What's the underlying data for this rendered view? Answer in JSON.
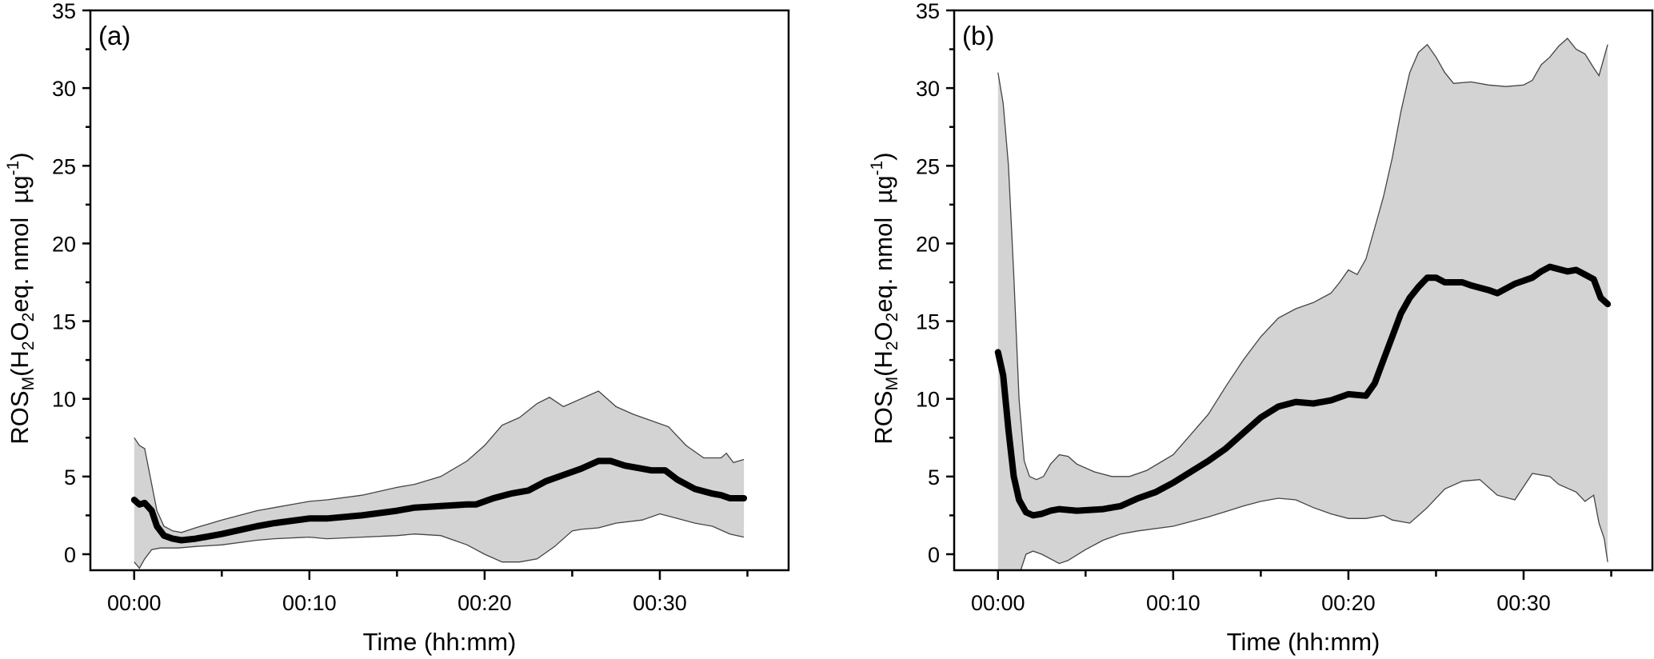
{
  "chart_data": [
    {
      "type": "line",
      "panel_label": "(a)",
      "title": "",
      "xlabel": "Time (hh:mm)",
      "ylabel": {
        "prefix": "ROS",
        "sub_m": "M",
        "open": "(H",
        "sub_2a": "2",
        "o": "O",
        "sub_2b": "2",
        "rest": "eq. nmol  µg",
        "sup": "-1",
        "close": ")"
      },
      "xlim": [
        -2.5,
        37.35
      ],
      "ylim": [
        -1.03,
        35
      ],
      "xticks": [
        0,
        10,
        20,
        30
      ],
      "xtick_labels": [
        "00:00",
        "00:10",
        "00:20",
        "00:30"
      ],
      "xminor": [
        5,
        15,
        25,
        35
      ],
      "yticks": [
        0,
        5,
        10,
        15,
        20,
        25,
        30,
        35
      ],
      "ytick_labels": [
        "0",
        "5",
        "10",
        "15",
        "20",
        "25",
        "30",
        "35"
      ],
      "yminor": [
        2.5,
        7.5,
        12.5,
        17.5,
        22.5,
        27.5,
        32.5
      ],
      "grid": false,
      "legend": "none",
      "series": [
        {
          "name": "mean",
          "x": [
            0,
            0.3,
            0.6,
            1.0,
            1.3,
            1.7,
            2.2,
            2.7,
            3.5,
            5,
            7,
            8,
            10,
            11,
            13,
            15,
            16,
            17.5,
            19,
            19.5,
            20.5,
            21.5,
            22.5,
            23.5,
            24.5,
            25.5,
            26.5,
            27.2,
            28,
            29,
            29.5,
            30.3,
            31,
            32,
            33,
            33.5,
            34,
            34.8
          ],
          "y": [
            3.5,
            3.2,
            3.3,
            2.8,
            1.8,
            1.2,
            1.0,
            0.9,
            1.0,
            1.3,
            1.8,
            2.0,
            2.3,
            2.3,
            2.5,
            2.8,
            3.0,
            3.1,
            3.2,
            3.2,
            3.6,
            3.9,
            4.1,
            4.7,
            5.1,
            5.5,
            6.0,
            6.0,
            5.7,
            5.5,
            5.4,
            5.4,
            4.8,
            4.2,
            3.9,
            3.8,
            3.6,
            3.6
          ]
        },
        {
          "name": "upper",
          "x": [
            0,
            0.3,
            0.6,
            1.0,
            1.3,
            1.7,
            2.2,
            2.7,
            3.5,
            5,
            7,
            8,
            10,
            11,
            13,
            15,
            16,
            17.5,
            19,
            20,
            21,
            22,
            23,
            23.7,
            24.5,
            25.5,
            26.5,
            27.5,
            28.5,
            29.5,
            30.5,
            31.5,
            32.5,
            33.5,
            33.8,
            34.2,
            34.8
          ],
          "y": [
            7.5,
            7.0,
            6.8,
            4.5,
            2.8,
            1.8,
            1.5,
            1.4,
            1.7,
            2.2,
            2.8,
            3.0,
            3.4,
            3.5,
            3.8,
            4.3,
            4.5,
            5.0,
            6.0,
            7.0,
            8.3,
            8.8,
            9.7,
            10.1,
            9.5,
            10.0,
            10.5,
            9.5,
            9.0,
            8.6,
            8.2,
            7.0,
            6.2,
            6.2,
            6.5,
            5.9,
            6.1
          ]
        },
        {
          "name": "lower",
          "x": [
            0,
            0.3,
            0.6,
            1.0,
            1.5,
            2.5,
            3.5,
            5,
            7,
            8,
            10,
            11,
            13,
            15,
            16,
            17.5,
            19,
            20,
            21,
            22,
            23,
            24,
            25,
            25.5,
            26.5,
            27.5,
            29,
            30,
            31,
            32,
            33,
            34,
            34.8
          ],
          "y": [
            -0.5,
            -0.9,
            -0.3,
            0.3,
            0.4,
            0.4,
            0.5,
            0.6,
            0.9,
            1.0,
            1.1,
            1.0,
            1.1,
            1.2,
            1.3,
            1.2,
            0.6,
            0.0,
            -0.5,
            -0.5,
            -0.3,
            0.5,
            1.5,
            1.6,
            1.7,
            2.0,
            2.2,
            2.6,
            2.3,
            2.0,
            1.8,
            1.3,
            1.1
          ]
        }
      ]
    },
    {
      "type": "line",
      "panel_label": "(b)",
      "title": "",
      "xlabel": "Time (hh:mm)",
      "ylabel": {
        "prefix": "ROS",
        "sub_m": "M",
        "open": "(H",
        "sub_2a": "2",
        "o": "O",
        "sub_2b": "2",
        "rest": "eq. nmol  µg",
        "sup": "-1",
        "close": ")"
      },
      "xlim": [
        -2.5,
        37.35
      ],
      "ylim": [
        -1.03,
        35
      ],
      "xticks": [
        0,
        10,
        20,
        30
      ],
      "xtick_labels": [
        "00:00",
        "00:10",
        "00:20",
        "00:30"
      ],
      "xminor": [
        5,
        15,
        25,
        35
      ],
      "yticks": [
        0,
        5,
        10,
        15,
        20,
        25,
        30,
        35
      ],
      "ytick_labels": [
        "0",
        "5",
        "10",
        "15",
        "20",
        "25",
        "30",
        "35"
      ],
      "yminor": [
        2.5,
        7.5,
        12.5,
        17.5,
        22.5,
        27.5,
        32.5
      ],
      "grid": false,
      "legend": "none",
      "series": [
        {
          "name": "mean",
          "x": [
            0,
            0.3,
            0.6,
            0.9,
            1.2,
            1.6,
            2.0,
            2.5,
            3.0,
            3.5,
            4.5,
            6,
            7,
            8,
            9,
            10,
            11,
            12,
            13,
            14,
            15,
            16,
            17,
            18,
            19,
            20,
            21,
            21.5,
            22,
            22.5,
            23,
            23.5,
            24,
            24.5,
            25,
            25.5,
            26.5,
            27,
            28,
            28.5,
            29.5,
            30.5,
            31,
            31.5,
            32.5,
            33,
            33.5,
            34,
            34.4,
            34.8
          ],
          "y": [
            13.0,
            11.5,
            8.0,
            5.0,
            3.5,
            2.7,
            2.5,
            2.6,
            2.8,
            2.9,
            2.8,
            2.9,
            3.1,
            3.6,
            4.0,
            4.6,
            5.3,
            6.0,
            6.8,
            7.8,
            8.8,
            9.5,
            9.8,
            9.7,
            9.9,
            10.3,
            10.2,
            11.0,
            12.5,
            14.0,
            15.5,
            16.5,
            17.2,
            17.8,
            17.8,
            17.5,
            17.5,
            17.3,
            17.0,
            16.8,
            17.4,
            17.8,
            18.2,
            18.5,
            18.2,
            18.3,
            18.0,
            17.7,
            16.5,
            16.1
          ]
        },
        {
          "name": "upper",
          "x": [
            0,
            0.3,
            0.6,
            0.9,
            1.2,
            1.5,
            1.8,
            2.2,
            2.6,
            3.0,
            3.5,
            4.0,
            4.5,
            5.5,
            6.5,
            7.5,
            8.5,
            10,
            11,
            12,
            13,
            14,
            15,
            16,
            17,
            18,
            19,
            19.5,
            20,
            20.5,
            21,
            21.5,
            22,
            22.5,
            23,
            23.5,
            24,
            24.5,
            25,
            25.5,
            26,
            27,
            28,
            29,
            30,
            30.5,
            31,
            31.5,
            32,
            32.5,
            33,
            33.5,
            34,
            34.3,
            34.8
          ],
          "y": [
            31.0,
            29.0,
            25.0,
            18.0,
            10.0,
            6.0,
            5.0,
            4.8,
            5.0,
            5.8,
            6.4,
            6.3,
            5.8,
            5.3,
            5.0,
            5.0,
            5.4,
            6.4,
            7.7,
            9.0,
            10.8,
            12.5,
            14.0,
            15.2,
            15.8,
            16.2,
            16.8,
            17.5,
            18.3,
            18.0,
            19.0,
            21.0,
            23.0,
            25.5,
            28.5,
            31.0,
            32.3,
            32.8,
            32.0,
            31.0,
            30.3,
            30.4,
            30.2,
            30.1,
            30.2,
            30.5,
            31.5,
            32.0,
            32.7,
            33.2,
            32.5,
            32.2,
            31.3,
            30.8,
            32.8
          ]
        },
        {
          "name": "lower",
          "x": [
            1.3,
            1.6,
            2.0,
            2.5,
            3.0,
            3.5,
            4.0,
            5.0,
            6.0,
            7,
            8,
            10,
            12,
            14,
            15,
            16,
            17,
            18,
            19,
            20,
            21,
            22,
            22.5,
            23.5,
            24.5,
            25.5,
            26.5,
            27.5,
            28.5,
            29.5,
            30.5,
            31.5,
            32,
            33,
            33.5,
            34,
            34.3,
            34.6,
            34.8
          ],
          "y": [
            -1.03,
            0.0,
            0.2,
            0.0,
            -0.3,
            -0.6,
            -0.4,
            0.3,
            0.9,
            1.3,
            1.5,
            1.8,
            2.4,
            3.1,
            3.4,
            3.6,
            3.5,
            3.0,
            2.6,
            2.3,
            2.3,
            2.5,
            2.2,
            2.0,
            3.0,
            4.2,
            4.7,
            4.8,
            3.8,
            3.5,
            5.2,
            5.0,
            4.5,
            4.0,
            3.4,
            3.8,
            2.0,
            1.0,
            -0.5
          ]
        }
      ]
    }
  ]
}
